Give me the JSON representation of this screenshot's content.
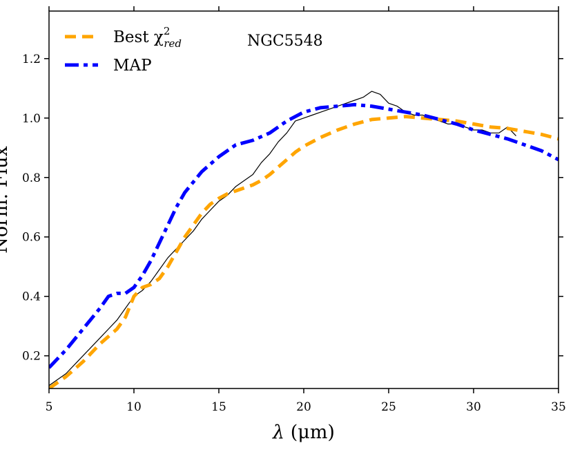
{
  "chart_data": {
    "type": "line",
    "title": "",
    "annotation": "NGC5548",
    "xlabel_symbol": "λ",
    "xlabel_unit": " (μm)",
    "ylabel": "Norm. Flux",
    "xlim": [
      5,
      35
    ],
    "ylim": [
      0.09,
      1.36
    ],
    "xticks": [
      5,
      10,
      15,
      20,
      25,
      30,
      35
    ],
    "xtick_labels": [
      "5",
      "10",
      "15",
      "20",
      "25",
      "30",
      "35"
    ],
    "yticks": [
      0.2,
      0.4,
      0.6,
      0.8,
      1.0,
      1.2
    ],
    "ytick_labels": [
      "0.2",
      "0.4",
      "0.6",
      "0.8",
      "1.0",
      "1.2"
    ],
    "grid": false,
    "legend_position": "top-left",
    "legend": [
      {
        "label_base": "Best χ",
        "label_sup": "2",
        "label_sub": "red",
        "color": "#FFA500",
        "style": "dashed"
      },
      {
        "label_base": "MAP",
        "label_sup": "",
        "label_sub": "",
        "color": "#0000FF",
        "style": "dashdot"
      }
    ],
    "series": [
      {
        "key": "observed",
        "color": "#000000",
        "style": "solid",
        "x": [
          5.0,
          5.5,
          6.0,
          6.5,
          7.0,
          7.5,
          8.0,
          8.5,
          9.0,
          9.5,
          10.0,
          10.5,
          11.0,
          11.5,
          12.0,
          12.5,
          13.0,
          13.5,
          14.0,
          14.5,
          15.0,
          15.5,
          16.0,
          16.5,
          17.0,
          17.5,
          18.0,
          18.5,
          19.0,
          19.5,
          20.0,
          20.5,
          21.0,
          21.5,
          22.0,
          22.5,
          23.0,
          23.5,
          24.0,
          24.5,
          25.0,
          25.5,
          26.0,
          26.5,
          27.0,
          27.5,
          28.0,
          28.5,
          29.0,
          29.5,
          30.0,
          30.5,
          31.0,
          31.5,
          32.0,
          32.5
        ],
        "y": [
          0.1,
          0.12,
          0.14,
          0.17,
          0.2,
          0.23,
          0.26,
          0.29,
          0.32,
          0.36,
          0.4,
          0.42,
          0.45,
          0.49,
          0.53,
          0.56,
          0.59,
          0.62,
          0.66,
          0.69,
          0.72,
          0.74,
          0.77,
          0.79,
          0.81,
          0.85,
          0.88,
          0.92,
          0.95,
          0.99,
          1.0,
          1.01,
          1.02,
          1.03,
          1.04,
          1.05,
          1.06,
          1.07,
          1.09,
          1.08,
          1.05,
          1.04,
          1.02,
          1.01,
          1.01,
          1.0,
          0.99,
          0.98,
          0.98,
          0.97,
          0.96,
          0.96,
          0.95,
          0.95,
          0.97,
          0.94
        ]
      },
      {
        "key": "best",
        "color": "#FFA500",
        "style": "dashed",
        "x": [
          5.0,
          6.0,
          7.0,
          8.0,
          9.0,
          9.5,
          10.0,
          10.5,
          11.0,
          11.5,
          12.0,
          12.5,
          13.0,
          13.5,
          14.0,
          14.5,
          15.0,
          15.5,
          16.0,
          16.5,
          17.0,
          17.5,
          18.0,
          18.5,
          19.0,
          19.5,
          20.0,
          21.0,
          22.0,
          23.0,
          24.0,
          25.0,
          26.0,
          27.0,
          28.0,
          29.0,
          30.0,
          31.0,
          32.0,
          33.0,
          34.0,
          35.0
        ],
        "y": [
          0.09,
          0.13,
          0.18,
          0.24,
          0.29,
          0.33,
          0.4,
          0.43,
          0.44,
          0.46,
          0.5,
          0.55,
          0.6,
          0.64,
          0.68,
          0.71,
          0.73,
          0.745,
          0.755,
          0.765,
          0.775,
          0.79,
          0.81,
          0.835,
          0.86,
          0.885,
          0.905,
          0.935,
          0.96,
          0.98,
          0.995,
          1.0,
          1.005,
          1.0,
          0.995,
          0.99,
          0.98,
          0.97,
          0.965,
          0.955,
          0.945,
          0.93
        ]
      },
      {
        "key": "map",
        "color": "#0000FF",
        "style": "dashdot",
        "x": [
          5.0,
          6.0,
          7.0,
          8.0,
          8.5,
          9.0,
          9.5,
          10.0,
          10.5,
          11.0,
          11.5,
          12.0,
          12.5,
          13.0,
          14.0,
          15.0,
          16.0,
          17.0,
          18.0,
          19.0,
          20.0,
          21.0,
          22.0,
          23.0,
          24.0,
          25.0,
          26.0,
          27.0,
          28.0,
          29.0,
          30.0,
          31.0,
          32.0,
          33.0,
          34.0,
          35.0
        ],
        "y": [
          0.16,
          0.22,
          0.29,
          0.36,
          0.4,
          0.41,
          0.41,
          0.43,
          0.47,
          0.52,
          0.58,
          0.64,
          0.7,
          0.75,
          0.82,
          0.87,
          0.91,
          0.925,
          0.95,
          0.99,
          1.02,
          1.035,
          1.04,
          1.045,
          1.04,
          1.03,
          1.02,
          1.01,
          0.995,
          0.98,
          0.96,
          0.945,
          0.93,
          0.91,
          0.89,
          0.86
        ]
      }
    ]
  }
}
